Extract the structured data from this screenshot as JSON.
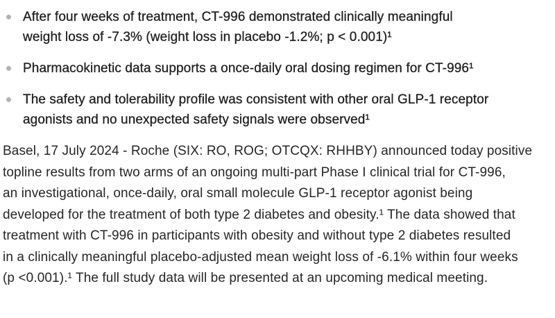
{
  "page": {
    "background_color": "#ffffff",
    "text_color": "#262626",
    "bullet_text_color": "#1f1f1f",
    "bullet_dot_color": "#b4b4b4"
  },
  "highlights": {
    "items": [
      {
        "text": "After four weeks of treatment, CT-996 demonstrated clinically meaningful\nweight loss of -7.3% (weight loss in placebo -1.2%; p < 0.001)¹"
      },
      {
        "text": "Pharmacokinetic data supports a once-daily oral dosing regimen for CT-996¹"
      },
      {
        "text": "The safety and tolerability profile was consistent with other oral GLP-1 receptor\nagonists and no unexpected safety signals were observed¹"
      }
    ]
  },
  "body": {
    "paragraph": "Basel, 17 July 2024 - Roche (SIX: RO, ROG; OTCQX: RHHBY) announced today positive\ntopline results from two arms of an ongoing multi-part Phase I clinical trial for CT-996,\nan investigational, once-daily, oral small molecule GLP-1 receptor agonist being\ndeveloped for the treatment of both type 2 diabetes and obesity.¹ The data showed that\ntreatment with CT-996 in participants with obesity and without type 2 diabetes resulted\nin a clinically meaningful placebo-adjusted mean weight loss of -6.1% within four weeks\n(p <0.001).¹ The full study data will be presented at an upcoming medical meeting."
  }
}
